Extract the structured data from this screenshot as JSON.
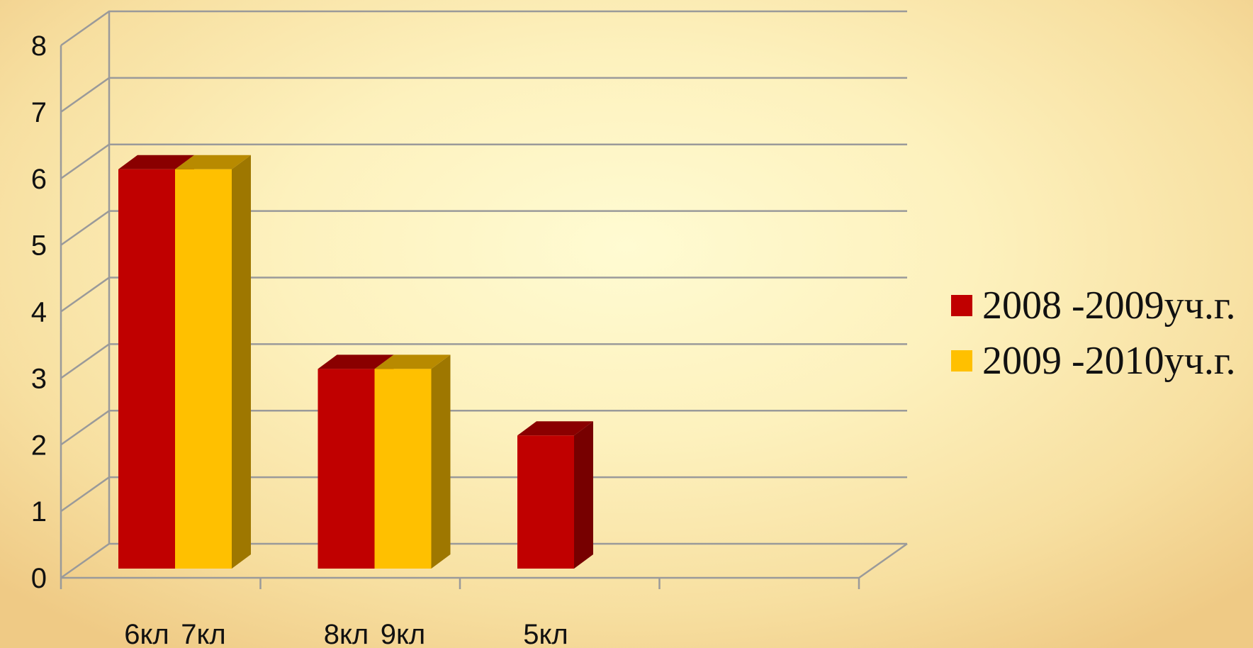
{
  "chart_data": {
    "type": "bar",
    "style": "3d-clustered-column",
    "categories": [
      "",
      "",
      "",
      ""
    ],
    "bar_labels": [
      [
        "6кл",
        "7кл"
      ],
      [
        "8кл",
        "9кл"
      ],
      [
        "5кл",
        ""
      ],
      [
        "",
        ""
      ]
    ],
    "series": [
      {
        "name": "2008 -2009уч.г.",
        "color": "#c00000",
        "values": [
          6,
          3,
          2,
          0
        ]
      },
      {
        "name": "2009 -2010уч.г.",
        "color": "#ffc000",
        "values": [
          6,
          3,
          0,
          0
        ]
      }
    ],
    "ylim": [
      0,
      8
    ],
    "yticks": [
      0,
      1,
      2,
      3,
      4,
      5,
      6,
      7,
      8
    ],
    "grid": true,
    "legend_position": "right",
    "title": "",
    "xlabel": "",
    "ylabel": ""
  }
}
